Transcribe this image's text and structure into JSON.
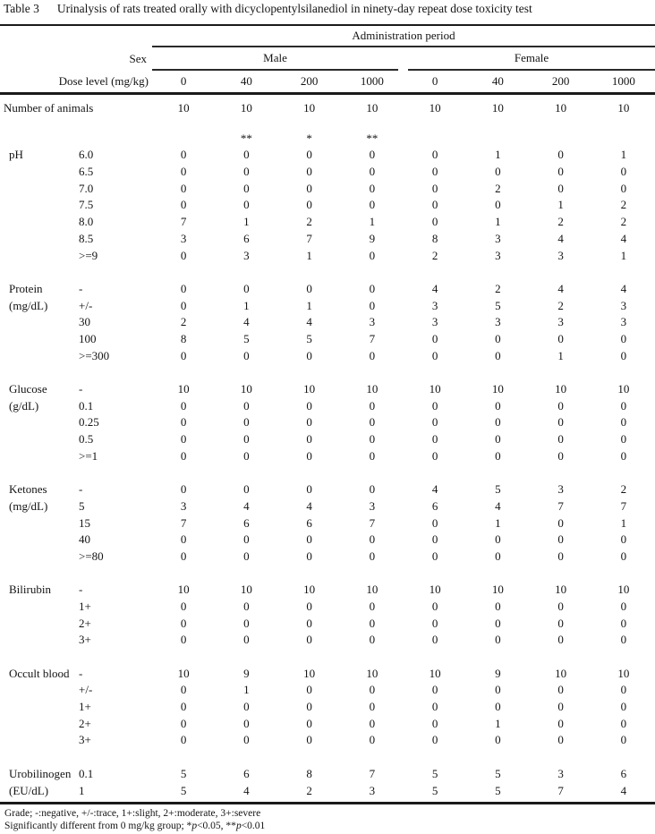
{
  "title": {
    "label": "Table 3",
    "text": "Urinalysis of rats treated orally with dicyclopentylsilanediol in ninety-day repeat dose toxicity test"
  },
  "header": {
    "administration_period": "Administration period",
    "sex_label": "Sex",
    "dose_label": "Dose level (mg/kg)",
    "male_group": "Male",
    "female_group": "Female",
    "doses": [
      "0",
      "40",
      "200",
      "1000",
      "0",
      "40",
      "200",
      "1000"
    ]
  },
  "number_of_animals": {
    "label": "Number of animals",
    "values": [
      "10",
      "10",
      "10",
      "10",
      "10",
      "10",
      "10",
      "10"
    ]
  },
  "significance_markers": [
    "",
    "**",
    "*",
    "**",
    "",
    "",
    "",
    ""
  ],
  "sections": [
    {
      "name": "pH",
      "unit": "",
      "rows": [
        {
          "grade": "6.0",
          "values": [
            "0",
            "0",
            "0",
            "0",
            "0",
            "1",
            "0",
            "1"
          ]
        },
        {
          "grade": "6.5",
          "values": [
            "0",
            "0",
            "0",
            "0",
            "0",
            "0",
            "0",
            "0"
          ]
        },
        {
          "grade": "7.0",
          "values": [
            "0",
            "0",
            "0",
            "0",
            "0",
            "2",
            "0",
            "0"
          ]
        },
        {
          "grade": "7.5",
          "values": [
            "0",
            "0",
            "0",
            "0",
            "0",
            "0",
            "1",
            "2"
          ]
        },
        {
          "grade": "8.0",
          "values": [
            "7",
            "1",
            "2",
            "1",
            "0",
            "1",
            "2",
            "2"
          ]
        },
        {
          "grade": "8.5",
          "values": [
            "3",
            "6",
            "7",
            "9",
            "8",
            "3",
            "4",
            "4"
          ]
        },
        {
          "grade": ">=9",
          "values": [
            "0",
            "3",
            "1",
            "0",
            "2",
            "3",
            "3",
            "1"
          ]
        }
      ]
    },
    {
      "name": "Protein",
      "unit": "(mg/dL)",
      "rows": [
        {
          "grade": "-",
          "values": [
            "0",
            "0",
            "0",
            "0",
            "4",
            "2",
            "4",
            "4"
          ]
        },
        {
          "grade": "+/-",
          "values": [
            "0",
            "1",
            "1",
            "0",
            "3",
            "5",
            "2",
            "3"
          ]
        },
        {
          "grade": "30",
          "values": [
            "2",
            "4",
            "4",
            "3",
            "3",
            "3",
            "3",
            "3"
          ]
        },
        {
          "grade": "100",
          "values": [
            "8",
            "5",
            "5",
            "7",
            "0",
            "0",
            "0",
            "0"
          ]
        },
        {
          "grade": ">=300",
          "values": [
            "0",
            "0",
            "0",
            "0",
            "0",
            "0",
            "1",
            "0"
          ]
        }
      ]
    },
    {
      "name": "Glucose",
      "unit": "(g/dL)",
      "rows": [
        {
          "grade": "-",
          "values": [
            "10",
            "10",
            "10",
            "10",
            "10",
            "10",
            "10",
            "10"
          ]
        },
        {
          "grade": "0.1",
          "values": [
            "0",
            "0",
            "0",
            "0",
            "0",
            "0",
            "0",
            "0"
          ]
        },
        {
          "grade": "0.25",
          "values": [
            "0",
            "0",
            "0",
            "0",
            "0",
            "0",
            "0",
            "0"
          ]
        },
        {
          "grade": "0.5",
          "values": [
            "0",
            "0",
            "0",
            "0",
            "0",
            "0",
            "0",
            "0"
          ]
        },
        {
          "grade": ">=1",
          "values": [
            "0",
            "0",
            "0",
            "0",
            "0",
            "0",
            "0",
            "0"
          ]
        }
      ]
    },
    {
      "name": "Ketones",
      "unit": "(mg/dL)",
      "rows": [
        {
          "grade": "-",
          "values": [
            "0",
            "0",
            "0",
            "0",
            "4",
            "5",
            "3",
            "2"
          ]
        },
        {
          "grade": "5",
          "values": [
            "3",
            "4",
            "4",
            "3",
            "6",
            "4",
            "7",
            "7"
          ]
        },
        {
          "grade": "15",
          "values": [
            "7",
            "6",
            "6",
            "7",
            "0",
            "1",
            "0",
            "1"
          ]
        },
        {
          "grade": "40",
          "values": [
            "0",
            "0",
            "0",
            "0",
            "0",
            "0",
            "0",
            "0"
          ]
        },
        {
          "grade": ">=80",
          "values": [
            "0",
            "0",
            "0",
            "0",
            "0",
            "0",
            "0",
            "0"
          ]
        }
      ]
    },
    {
      "name": "Bilirubin",
      "unit": "",
      "rows": [
        {
          "grade": "-",
          "values": [
            "10",
            "10",
            "10",
            "10",
            "10",
            "10",
            "10",
            "10"
          ]
        },
        {
          "grade": "1+",
          "values": [
            "0",
            "0",
            "0",
            "0",
            "0",
            "0",
            "0",
            "0"
          ]
        },
        {
          "grade": "2+",
          "values": [
            "0",
            "0",
            "0",
            "0",
            "0",
            "0",
            "0",
            "0"
          ]
        },
        {
          "grade": "3+",
          "values": [
            "0",
            "0",
            "0",
            "0",
            "0",
            "0",
            "0",
            "0"
          ]
        }
      ]
    },
    {
      "name": "Occult blood",
      "unit": "",
      "rows": [
        {
          "grade": "-",
          "values": [
            "10",
            "9",
            "10",
            "10",
            "10",
            "9",
            "10",
            "10"
          ]
        },
        {
          "grade": "+/-",
          "values": [
            "0",
            "1",
            "0",
            "0",
            "0",
            "0",
            "0",
            "0"
          ]
        },
        {
          "grade": "1+",
          "values": [
            "0",
            "0",
            "0",
            "0",
            "0",
            "0",
            "0",
            "0"
          ]
        },
        {
          "grade": "2+",
          "values": [
            "0",
            "0",
            "0",
            "0",
            "0",
            "1",
            "0",
            "0"
          ]
        },
        {
          "grade": "3+",
          "values": [
            "0",
            "0",
            "0",
            "0",
            "0",
            "0",
            "0",
            "0"
          ]
        }
      ]
    },
    {
      "name": "Urobilinogen",
      "unit": "(EU/dL)",
      "rows": [
        {
          "grade": "0.1",
          "values": [
            "5",
            "6",
            "8",
            "7",
            "5",
            "5",
            "3",
            "6"
          ]
        },
        {
          "grade": "1",
          "values": [
            "5",
            "4",
            "2",
            "3",
            "5",
            "5",
            "7",
            "4"
          ]
        }
      ]
    }
  ],
  "footnotes": {
    "grade_line": "Grade; -:negative, +/-:trace, 1+:slight, 2+:moderate, 3+:severe",
    "significance": {
      "prefix": "Significantly different from 0 mg/kg group; *",
      "p1": "p",
      "mid": "<0.05, **",
      "p2": "p",
      "suffix": "<0.01"
    }
  }
}
